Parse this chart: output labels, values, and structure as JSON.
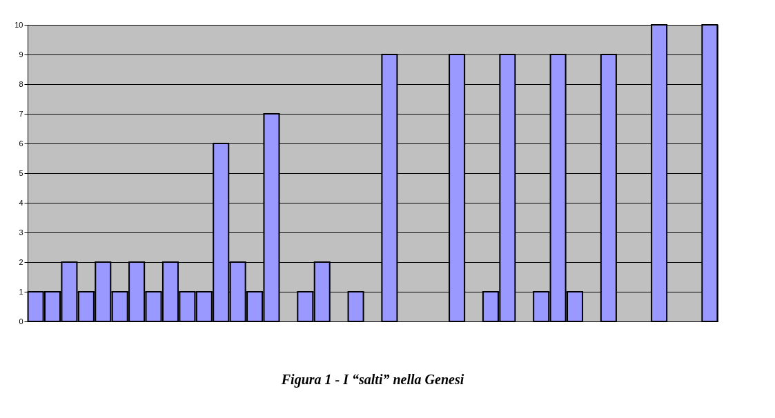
{
  "chart_data": {
    "type": "bar",
    "title": "Figura 1 - I “salti” nella Genesi",
    "categories": [
      null,
      null,
      null,
      null,
      null,
      null,
      null,
      null,
      null,
      null,
      null,
      null,
      null,
      null,
      null,
      null,
      null,
      null,
      null,
      null,
      null,
      null,
      null,
      null,
      null,
      null,
      null,
      null,
      null,
      null,
      null,
      null,
      null,
      null,
      null,
      null,
      null,
      null,
      null,
      null,
      null
    ],
    "values": [
      1,
      1,
      2,
      1,
      2,
      1,
      2,
      1,
      2,
      1,
      1,
      6,
      2,
      1,
      7,
      null,
      1,
      2,
      null,
      1,
      null,
      9,
      null,
      null,
      null,
      9,
      null,
      1,
      9,
      null,
      1,
      9,
      1,
      null,
      9,
      null,
      null,
      10,
      null,
      null,
      10
    ],
    "color": "#9999ff",
    "ylim": [
      0,
      10
    ],
    "yticks": [
      0,
      1,
      2,
      3,
      4,
      5,
      6,
      7,
      8,
      9,
      10
    ],
    "grid": "y",
    "tick_labels": "y"
  }
}
